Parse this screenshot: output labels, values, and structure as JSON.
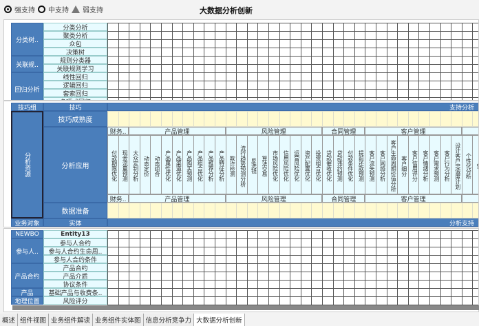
{
  "legend": {
    "strong": "强支持",
    "medium": "中支持",
    "weak": "弱支持"
  },
  "title": "大数据分析创新",
  "top_panel": {
    "groups": [
      {
        "label": "分类树..",
        "rows": [
          "分类分析",
          "聚类分析",
          "众包",
          "决策树"
        ]
      },
      {
        "label": "关联规..",
        "rows": [
          "规则分类器",
          "关联规则学习"
        ]
      },
      {
        "label": "回归分析",
        "rows": [
          "线性回归",
          "逻辑回归",
          "套索回归",
          "多项式回归"
        ]
      }
    ]
  },
  "middle_panel": {
    "header": {
      "group": "技巧组",
      "skill": "技巧",
      "right": "支持分析"
    },
    "left_label": "分析资源",
    "maturity": "技巧成熟度",
    "analysis_app": "分析应用",
    "data_prep": "数据准备",
    "footer": {
      "group": "业务对象",
      "skill": "实体",
      "right": "分析支持"
    },
    "categories": [
      {
        "label": "财务..",
        "cols": [
          "付款期限优化",
          "现金流量预测"
        ]
      },
      {
        "label": "产品管理",
        "cols": [
          "大众定制分析",
          "动态定价",
          "动态组合",
          "产品属性优化",
          "产品渠道优化",
          "产品购买预测",
          "产品组合优化",
          "产品推荐分析",
          "产品特征分析"
        ]
      },
      {
        "label": "风险管理",
        "cols": [
          "欺诈检测",
          "流行趋势预测分析",
          "反洗钱",
          "算法交易",
          "市场风险优化",
          "信用风险优化",
          "运营风险优化",
          "资产配置优化",
          "投资组合优化"
        ]
      },
      {
        "label": "合同管理",
        "cols": [
          "贷款催收优化",
          "贷款违约预测",
          "付款条件优化",
          "提前还款预测"
        ]
      },
      {
        "label": "客户管理",
        "cols": [
          "客户流失预测",
          "客户网络分析",
          "客户生命周期价值分析",
          "客户细分",
          "客户信用评分",
          "客户情绪分析",
          "客户需求预测",
          "客户行为分析",
          "设计客户忠诚度计划"
        ]
      },
      {
        "label": "",
        "cols": [
          "个性化分析",
          "营"
        ]
      }
    ]
  },
  "bottom_panel": {
    "header": {
      "group": "NEWBO",
      "entity": "Entity13"
    },
    "groups": [
      {
        "label": "参与人..",
        "rows": [
          "参与人合约",
          "参与人合约生命周..",
          "参与人合约条件"
        ]
      },
      {
        "label": "产品合约",
        "rows": [
          "产品合约",
          "产品介质",
          "协议条件"
        ]
      },
      {
        "label": "产品",
        "rows": [
          "基础产品与收费条.."
        ]
      },
      {
        "label": "地理位置",
        "rows": [
          "风险评分"
        ]
      }
    ]
  },
  "tabs": [
    "概述",
    "组件视图",
    "业务组件解读",
    "业务组件实体图",
    "信息分析竞争力",
    "大数据分析创新"
  ],
  "active_tab": "大数据分析创新"
}
